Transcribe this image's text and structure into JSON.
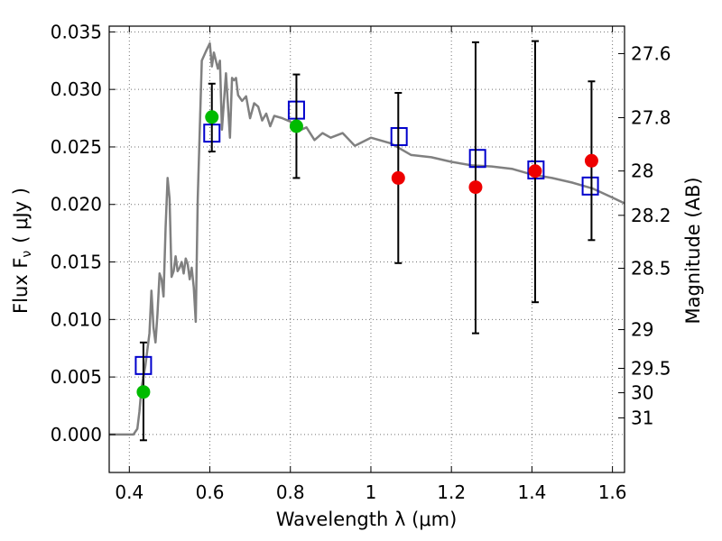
{
  "chart_data": {
    "type": "scatter",
    "xlabel": "Wavelength  λ (μm)",
    "ylabel": "Flux  F",
    "ylabel_sub": "ν",
    "ylabel_unit": "( μJy )",
    "y2label": "Magnitude (AB)",
    "xlim": [
      0.35,
      1.63
    ],
    "ylim": [
      -0.0033,
      0.0355
    ],
    "grid": true,
    "x_ticks": [
      0.4,
      0.6,
      0.8,
      1.0,
      1.2,
      1.4,
      1.6
    ],
    "x_tick_labels": [
      "0.4",
      "0.6",
      "0.8",
      "1",
      "1.2",
      "1.4",
      "1.6"
    ],
    "y_ticks": [
      0.0,
      0.005,
      0.01,
      0.015,
      0.02,
      0.025,
      0.03,
      0.035
    ],
    "y_tick_labels": [
      "0.000",
      "0.005",
      "0.010",
      "0.015",
      "0.020",
      "0.025",
      "0.030",
      "0.035"
    ],
    "mag_ticks": [
      27.6,
      27.8,
      28,
      28.2,
      28.5,
      29,
      29.5,
      30,
      31
    ],
    "mag_tick_labels": [
      "27.6",
      "27.8",
      "28",
      "28.2",
      "28.5",
      "29",
      "29.5",
      "30",
      "31"
    ],
    "colors": {
      "model": "#808080",
      "open_squares": "#0000cc",
      "green_points": "#00bb00",
      "red_points": "#ee0000",
      "errorbars": "#000000"
    },
    "series": [
      {
        "kind": "line",
        "x": [
          0.35,
          0.41,
          0.42,
          0.425,
          0.43,
          0.44,
          0.45,
          0.455,
          0.46,
          0.465,
          0.47,
          0.475,
          0.48,
          0.485,
          0.49,
          0.495,
          0.5,
          0.505,
          0.51,
          0.515,
          0.52,
          0.525,
          0.53,
          0.535,
          0.54,
          0.545,
          0.55,
          0.555,
          0.56,
          0.565,
          0.57,
          0.58,
          0.59,
          0.6,
          0.605,
          0.61,
          0.62,
          0.625,
          0.63,
          0.64,
          0.65,
          0.655,
          0.66,
          0.665,
          0.67,
          0.68,
          0.69,
          0.7,
          0.71,
          0.72,
          0.73,
          0.74,
          0.75,
          0.76,
          0.78,
          0.8,
          0.82,
          0.84,
          0.86,
          0.88,
          0.9,
          0.93,
          0.96,
          1.0,
          1.05,
          1.1,
          1.15,
          1.2,
          1.25,
          1.3,
          1.35,
          1.4,
          1.45,
          1.5,
          1.55,
          1.6,
          1.63
        ],
        "y": [
          0.0,
          0.0,
          0.0005,
          0.002,
          0.004,
          0.006,
          0.0088,
          0.0125,
          0.0093,
          0.008,
          0.0105,
          0.014,
          0.0135,
          0.012,
          0.018,
          0.0223,
          0.0205,
          0.0137,
          0.0142,
          0.0155,
          0.0142,
          0.0145,
          0.015,
          0.014,
          0.0153,
          0.0148,
          0.0135,
          0.0145,
          0.0128,
          0.0098,
          0.0205,
          0.0325,
          0.0333,
          0.034,
          0.032,
          0.0332,
          0.0318,
          0.0325,
          0.0265,
          0.0314,
          0.0258,
          0.031,
          0.0308,
          0.031,
          0.0295,
          0.029,
          0.0294,
          0.0275,
          0.0288,
          0.0285,
          0.0273,
          0.0279,
          0.0268,
          0.0277,
          0.0275,
          0.0272,
          0.0264,
          0.0267,
          0.0256,
          0.0262,
          0.0258,
          0.0262,
          0.0251,
          0.0258,
          0.0253,
          0.0243,
          0.0241,
          0.0237,
          0.0234,
          0.0233,
          0.0231,
          0.0226,
          0.0223,
          0.0219,
          0.0214,
          0.0206,
          0.0201
        ]
      },
      {
        "kind": "open-square",
        "x": [
          0.435,
          0.605,
          0.815,
          1.07,
          1.265,
          1.41,
          1.545
        ],
        "y": [
          0.006,
          0.0262,
          0.0282,
          0.0259,
          0.024,
          0.023,
          0.0216
        ]
      },
      {
        "kind": "errorbar",
        "x": [
          0.435,
          0.605,
          0.815,
          1.068,
          1.26,
          1.408,
          1.548
        ],
        "y": [
          0.0037,
          0.0276,
          0.0268,
          0.0223,
          0.0215,
          0.0229,
          0.0238
        ],
        "ylow": [
          -0.0005,
          0.0246,
          0.0223,
          0.0149,
          0.0088,
          0.0115,
          0.0169
        ],
        "yhigh": [
          0.008,
          0.0305,
          0.0313,
          0.0297,
          0.0341,
          0.0342,
          0.0307
        ]
      },
      {
        "kind": "filled-circle",
        "color_key": "green_points",
        "x": [
          0.435,
          0.605,
          0.815
        ],
        "y": [
          0.0037,
          0.0276,
          0.0268
        ]
      },
      {
        "kind": "filled-circle",
        "color_key": "red_points",
        "x": [
          1.068,
          1.26,
          1.408,
          1.548
        ],
        "y": [
          0.0223,
          0.0215,
          0.0229,
          0.0238
        ]
      }
    ]
  }
}
